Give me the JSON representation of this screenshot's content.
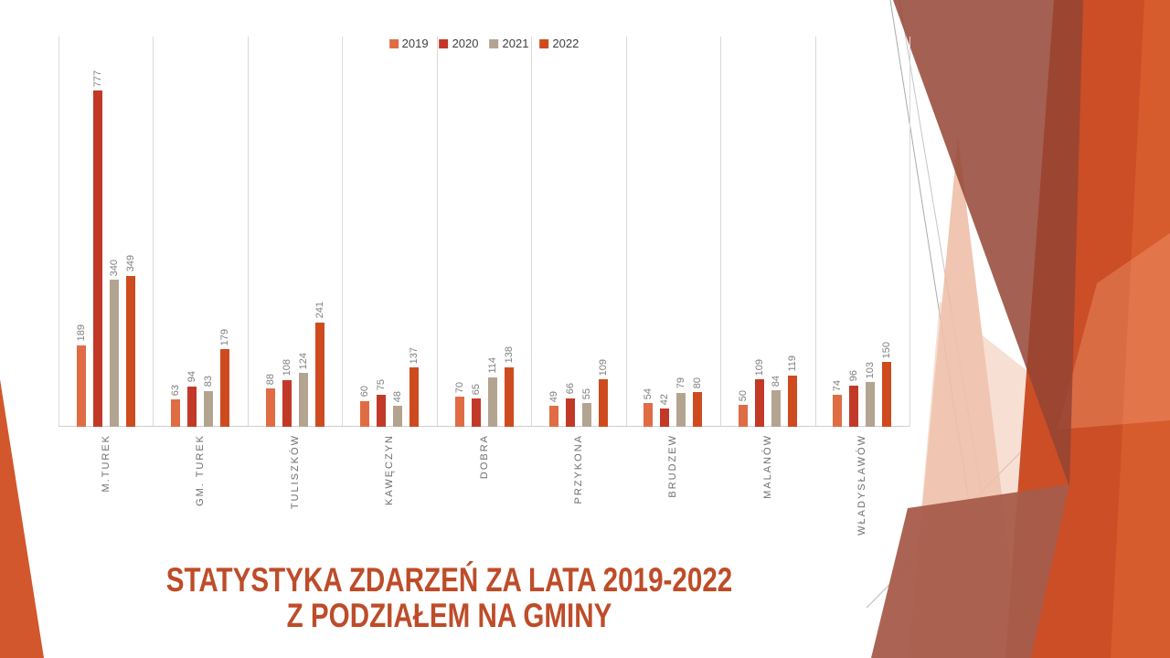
{
  "slide": {
    "title": {
      "line1": "STATYSTYKA ZDARZEŃ ZA LATA 2019-2022",
      "line2": "Z PODZIAŁEM NA GMINY",
      "color": "#BE4C29"
    }
  },
  "chart_data": {
    "type": "bar",
    "title": "STATYSTYKA ZDARZEŃ ZA LATA 2019-2022 Z PODZIAŁEM NA GMINY",
    "categories": [
      "M.TUREK",
      "GM. TUREK",
      "TULISZKÓW",
      "KAWĘCZYN",
      "DOBRA",
      "PRZYKONA",
      "BRUDZEW",
      "MALANÓW",
      "WŁADYSŁAWÓW"
    ],
    "series": [
      {
        "name": "2019",
        "color": "#E06C44",
        "values": [
          189,
          63,
          88,
          60,
          70,
          49,
          54,
          50,
          74
        ]
      },
      {
        "name": "2020",
        "color": "#C23928",
        "values": [
          777,
          94,
          108,
          75,
          65,
          66,
          42,
          109,
          96
        ]
      },
      {
        "name": "2021",
        "color": "#B3A491",
        "values": [
          340,
          83,
          124,
          48,
          114,
          55,
          79,
          84,
          103
        ]
      },
      {
        "name": "2022",
        "color": "#CE4B1F",
        "values": [
          349,
          179,
          241,
          137,
          138,
          109,
          80,
          119,
          150
        ]
      }
    ],
    "xlabel": "",
    "ylabel": "",
    "ylim": [
      0,
      800
    ],
    "legend_position": "top",
    "grid": "vertical-only",
    "value_labels": true,
    "category_label_rotation": 90
  },
  "style": {
    "grid_color": "#D9D9D9",
    "axis_color": "#CFCFCF",
    "value_label_color": "#7F7F7F",
    "category_label_color": "#6E6E6E",
    "legend_text_color": "#3F3F3F",
    "accent_orange": "#CB4E26",
    "accent_brown": "#96503B",
    "accent_pink": "#EFC4B1"
  }
}
